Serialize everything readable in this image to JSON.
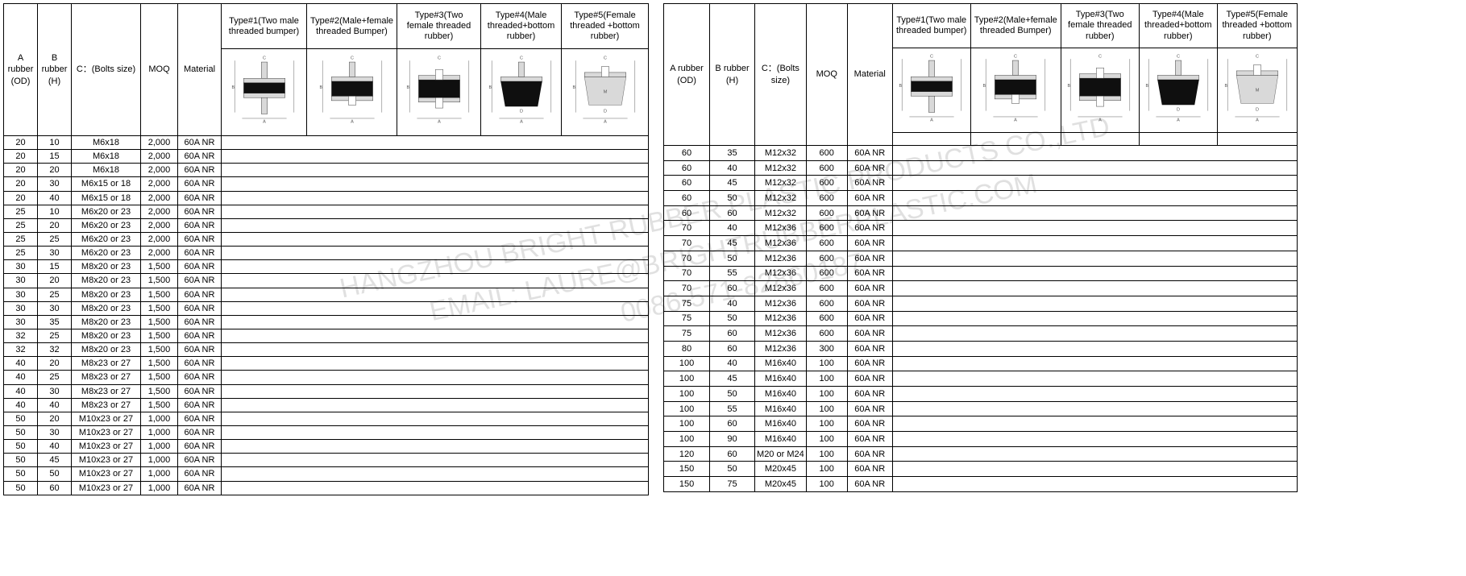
{
  "watermark": {
    "line1": "HANGZHOU BRIGHT RUBBER PLASTIC PRODUCTS CO.,LTD",
    "line2": "EMAIL: LAURE@BRIGHTRUBBERPLASTIC.COM",
    "line3": "0086-571-82860187"
  },
  "columns": {
    "col_a": "A rubber (OD)",
    "col_b": "B rubber (H)",
    "col_c": "C：(Bolts size)",
    "col_moq": "MOQ",
    "col_mat": "Material",
    "col_t1": "Type#1(Two male threaded bumper)",
    "col_t2": "Type#2(Male+female threaded Bumper)",
    "col_t3": "Type#3(Two female threaded rubber)",
    "col_t4": "Type#4(Male threaded+bottom rubber)",
    "col_t5": "Type#5(Female threaded +bottom rubber)"
  },
  "col_widths_left": {
    "a": 42,
    "b": 42,
    "c": 86,
    "moq": 46,
    "mat": 54,
    "t1": 106,
    "t2": 100,
    "t3": 104,
    "t4": 100,
    "t5": 108
  },
  "col_widths_right": {
    "a": 57,
    "b": 56,
    "c": 60,
    "moq": 51,
    "mat": 56,
    "t1": 95,
    "t2": 88,
    "t3": 90,
    "t4": 90,
    "t5": 99
  },
  "diagram_colors": {
    "rubber": "#0f0f0f",
    "metal_fill": "#d9d9d9",
    "line": "#555555",
    "bg": "#ffffff"
  },
  "tableLeft": [
    [
      "20",
      "10",
      "M6x18",
      "2,000",
      "60A NR"
    ],
    [
      "20",
      "15",
      "M6x18",
      "2,000",
      "60A NR"
    ],
    [
      "20",
      "20",
      "M6x18",
      "2,000",
      "60A NR"
    ],
    [
      "20",
      "30",
      "M6x15 or 18",
      "2,000",
      "60A NR"
    ],
    [
      "20",
      "40",
      "M6x15 or 18",
      "2,000",
      "60A NR"
    ],
    [
      "25",
      "10",
      "M6x20 or 23",
      "2,000",
      "60A NR"
    ],
    [
      "25",
      "20",
      "M6x20 or 23",
      "2,000",
      "60A NR"
    ],
    [
      "25",
      "25",
      "M6x20 or 23",
      "2,000",
      "60A NR"
    ],
    [
      "25",
      "30",
      "M6x20 or 23",
      "2,000",
      "60A NR"
    ],
    [
      "30",
      "15",
      "M8x20 or 23",
      "1,500",
      "60A NR"
    ],
    [
      "30",
      "20",
      "M8x20 or 23",
      "1,500",
      "60A NR"
    ],
    [
      "30",
      "25",
      "M8x20 or 23",
      "1,500",
      "60A NR"
    ],
    [
      "30",
      "30",
      "M8x20 or 23",
      "1,500",
      "60A NR"
    ],
    [
      "30",
      "35",
      "M8x20 or 23",
      "1,500",
      "60A NR"
    ],
    [
      "32",
      "25",
      "M8x20 or 23",
      "1,500",
      "60A NR"
    ],
    [
      "32",
      "32",
      "M8x20 or 23",
      "1,500",
      "60A NR"
    ],
    [
      "40",
      "20",
      "M8x23 or 27",
      "1,500",
      "60A NR"
    ],
    [
      "40",
      "25",
      "M8x23 or 27",
      "1,500",
      "60A NR"
    ],
    [
      "40",
      "30",
      "M8x23 or 27",
      "1,500",
      "60A NR"
    ],
    [
      "40",
      "40",
      "M8x23 or 27",
      "1,500",
      "60A NR"
    ],
    [
      "50",
      "20",
      "M10x23 or 27",
      "1,000",
      "60A NR"
    ],
    [
      "50",
      "30",
      "M10x23 or 27",
      "1,000",
      "60A NR"
    ],
    [
      "50",
      "40",
      "M10x23 or 27",
      "1,000",
      "60A NR"
    ],
    [
      "50",
      "45",
      "M10x23 or 27",
      "1,000",
      "60A NR"
    ],
    [
      "50",
      "50",
      "M10x23 or 27",
      "1,000",
      "60A NR"
    ],
    [
      "50",
      "60",
      "M10x23 or 27",
      "1,000",
      "60A NR"
    ]
  ],
  "tableRight": [
    [
      "60",
      "35",
      "M12x32",
      "600",
      "60A NR"
    ],
    [
      "60",
      "40",
      "M12x32",
      "600",
      "60A NR"
    ],
    [
      "60",
      "45",
      "M12x32",
      "600",
      "60A NR"
    ],
    [
      "60",
      "50",
      "M12x32",
      "600",
      "60A NR"
    ],
    [
      "60",
      "60",
      "M12x32",
      "600",
      "60A NR"
    ],
    [
      "70",
      "40",
      "M12x36",
      "600",
      "60A NR"
    ],
    [
      "70",
      "45",
      "M12x36",
      "600",
      "60A NR"
    ],
    [
      "70",
      "50",
      "M12x36",
      "600",
      "60A NR"
    ],
    [
      "70",
      "55",
      "M12x36",
      "600",
      "60A NR"
    ],
    [
      "70",
      "60",
      "M12x36",
      "600",
      "60A NR"
    ],
    [
      "75",
      "40",
      "M12x36",
      "600",
      "60A NR"
    ],
    [
      "75",
      "50",
      "M12x36",
      "600",
      "60A NR"
    ],
    [
      "75",
      "60",
      "M12x36",
      "600",
      "60A NR"
    ],
    [
      "80",
      "60",
      "M12x36",
      "300",
      "60A NR"
    ],
    [
      "100",
      "40",
      "M16x40",
      "100",
      "60A NR"
    ],
    [
      "100",
      "45",
      "M16x40",
      "100",
      "60A NR"
    ],
    [
      "100",
      "50",
      "M16x40",
      "100",
      "60A NR"
    ],
    [
      "100",
      "55",
      "M16x40",
      "100",
      "60A NR"
    ],
    [
      "100",
      "60",
      "M16x40",
      "100",
      "60A NR"
    ],
    [
      "100",
      "90",
      "M16x40",
      "100",
      "60A NR"
    ],
    [
      "120",
      "60",
      "M20 or M24",
      "100",
      "60A NR"
    ],
    [
      "150",
      "50",
      "M20x45",
      "100",
      "60A NR"
    ],
    [
      "150",
      "75",
      "M20x45",
      "100",
      "60A NR"
    ]
  ]
}
